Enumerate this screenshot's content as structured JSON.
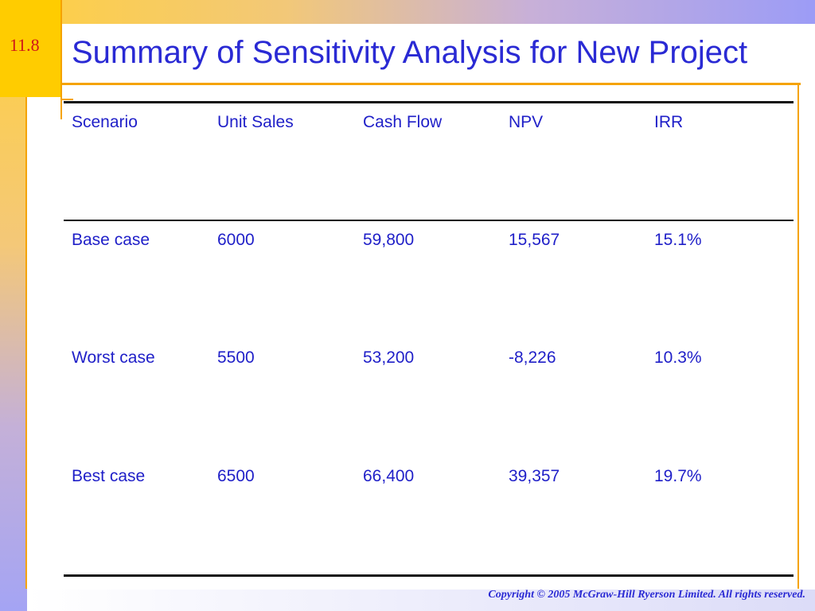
{
  "slide": {
    "number": "11.8",
    "title": "Summary of Sensitivity Analysis for New Project",
    "copyright": "Copyright © 2005 McGraw-Hill Ryerson Limited. All rights reserved."
  },
  "table": {
    "columns": [
      "Scenario",
      "Unit Sales",
      "Cash Flow",
      "NPV",
      "IRR"
    ],
    "rows": [
      [
        "Base case",
        "6000",
        "59,800",
        "15,567",
        "15.1%"
      ],
      [
        "Worst case",
        "5500",
        "53,200",
        "-8,226",
        "10.3%"
      ],
      [
        "Best case",
        "6500",
        "66,400",
        "39,357",
        "19.7%"
      ]
    ]
  },
  "colors": {
    "title": "#2a2ad4",
    "accent": "#f5a300",
    "badge": "#ffcc00",
    "slide_number": "#d01818",
    "text": "#1f1fc8"
  }
}
